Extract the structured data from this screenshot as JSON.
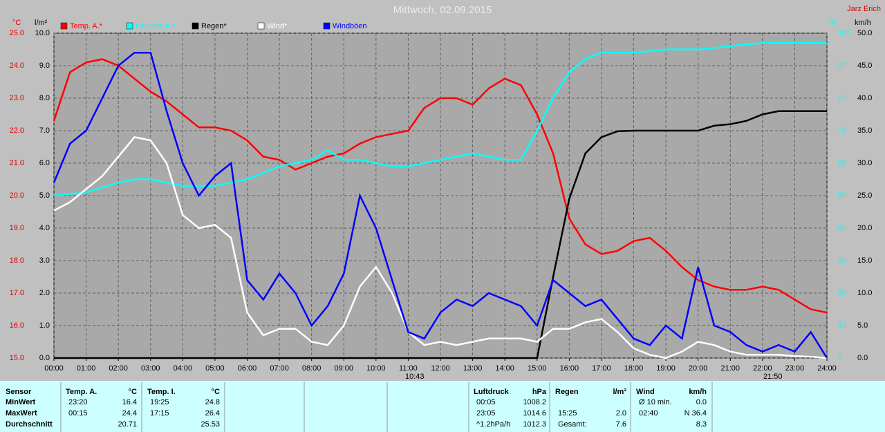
{
  "chart_data": {
    "type": "line",
    "title": "Mittwoch, 02.09.2015",
    "author": "Jarz Erich",
    "y_label": "°C",
    "y2_label": "l/m²",
    "y3_label": "%",
    "y4_label": "km/h",
    "markers": [
      "10:43",
      "21:50"
    ],
    "x": [
      0,
      0.5,
      1,
      1.5,
      2,
      2.5,
      3,
      3.5,
      4,
      4.5,
      5,
      5.5,
      6,
      6.5,
      7,
      7.5,
      8,
      8.5,
      9,
      9.5,
      10,
      10.5,
      11,
      11.5,
      12,
      12.5,
      13,
      13.5,
      14,
      14.5,
      15,
      15.5,
      16,
      16.5,
      17,
      17.5,
      18,
      18.5,
      19,
      19.5,
      20,
      20.5,
      21,
      21.5,
      22,
      22.5,
      23,
      23.5,
      24
    ],
    "xlim": [
      0,
      24
    ],
    "xticks": [
      {
        "value": 0,
        "label": "00:00"
      },
      {
        "value": 1,
        "label": "01:00"
      },
      {
        "value": 2,
        "label": "02:00"
      },
      {
        "value": 3,
        "label": "03:00"
      },
      {
        "value": 4,
        "label": "04:00"
      },
      {
        "value": 5,
        "label": "05:00"
      },
      {
        "value": 6,
        "label": "06:00"
      },
      {
        "value": 7,
        "label": "07:00"
      },
      {
        "value": 8,
        "label": "08:00"
      },
      {
        "value": 9,
        "label": "09:00"
      },
      {
        "value": 10,
        "label": "10:00"
      },
      {
        "value": 11,
        "label": "11:00"
      },
      {
        "value": 12,
        "label": "12:00"
      },
      {
        "value": 13,
        "label": "13:00"
      },
      {
        "value": 14,
        "label": "14:00"
      },
      {
        "value": 15,
        "label": "15:00"
      },
      {
        "value": 16,
        "label": "16:00"
      },
      {
        "value": 17,
        "label": "17:00"
      },
      {
        "value": 18,
        "label": "18:00"
      },
      {
        "value": 19,
        "label": "19:00"
      },
      {
        "value": 20,
        "label": "20:00"
      },
      {
        "value": 21,
        "label": "21:00"
      },
      {
        "value": 22,
        "label": "22:00"
      },
      {
        "value": 23,
        "label": "23:00"
      },
      {
        "value": 24,
        "label": "24:00"
      }
    ],
    "ylim": [
      15,
      25
    ],
    "yticks": [
      {
        "value": 15,
        "label": "15.0"
      },
      {
        "value": 16,
        "label": "16.0"
      },
      {
        "value": 17,
        "label": "17.0"
      },
      {
        "value": 18,
        "label": "18.0"
      },
      {
        "value": 19,
        "label": "19.0"
      },
      {
        "value": 20,
        "label": "20.0"
      },
      {
        "value": 21,
        "label": "21.0"
      },
      {
        "value": 22,
        "label": "22.0"
      },
      {
        "value": 23,
        "label": "23.0"
      },
      {
        "value": 24,
        "label": "24.0"
      },
      {
        "value": 25,
        "label": "25.0"
      }
    ],
    "y2lim": [
      0,
      10
    ],
    "y2ticks": [
      {
        "value": 0,
        "label": "0.0"
      },
      {
        "value": 1,
        "label": "1.0"
      },
      {
        "value": 2,
        "label": "2.0"
      },
      {
        "value": 3,
        "label": "3.0"
      },
      {
        "value": 4,
        "label": "4.0"
      },
      {
        "value": 5,
        "label": "5.0"
      },
      {
        "value": 6,
        "label": "6.0"
      },
      {
        "value": 7,
        "label": "7.0"
      },
      {
        "value": 8,
        "label": "8.0"
      },
      {
        "value": 9,
        "label": "9.0"
      },
      {
        "value": 10,
        "label": "10.0"
      }
    ],
    "y3lim": [
      0,
      100
    ],
    "y3ticks": [
      0,
      10,
      20,
      30,
      40,
      50,
      60,
      70,
      80,
      90,
      100
    ],
    "y4lim": [
      0,
      50
    ],
    "y4ticks": [
      {
        "value": 0,
        "label": "0.0"
      },
      {
        "value": 5,
        "label": "5.0"
      },
      {
        "value": 10,
        "label": "10.0"
      },
      {
        "value": 15,
        "label": "15.0"
      },
      {
        "value": 20,
        "label": "20.0"
      },
      {
        "value": 25,
        "label": "25.0"
      },
      {
        "value": 30,
        "label": "30.0"
      },
      {
        "value": 35,
        "label": "35.0"
      },
      {
        "value": 40,
        "label": "40.0"
      },
      {
        "value": 45,
        "label": "45.0"
      },
      {
        "value": 50,
        "label": "50.0"
      }
    ],
    "grid": true,
    "series": [
      {
        "name": "Temp. A.*",
        "color": "#ff0000",
        "axis": "y",
        "values": [
          22.3,
          23.8,
          24.1,
          24.2,
          24.0,
          23.6,
          23.2,
          22.9,
          22.5,
          22.1,
          22.1,
          22.0,
          21.7,
          21.2,
          21.1,
          20.8,
          21.0,
          21.2,
          21.3,
          21.6,
          21.8,
          21.9,
          22.0,
          22.7,
          23.0,
          23.0,
          22.8,
          23.3,
          23.6,
          23.4,
          22.5,
          21.3,
          19.3,
          18.5,
          18.2,
          18.3,
          18.6,
          18.7,
          18.3,
          17.8,
          17.4,
          17.2,
          17.1,
          17.1,
          17.2,
          17.1,
          16.8,
          16.5,
          16.4
        ]
      },
      {
        "name": "Feuchte A.*",
        "color": "#00ffff",
        "axis": "y3",
        "values": [
          50,
          50.5,
          51,
          52.5,
          54,
          55,
          55,
          54,
          53,
          53,
          53,
          54,
          55,
          57,
          59,
          60,
          61,
          64,
          61,
          61,
          60,
          59,
          59,
          60,
          61,
          62,
          63,
          62,
          61,
          61,
          70,
          80,
          88,
          92,
          94,
          94,
          94,
          94.5,
          95,
          95,
          95,
          95.5,
          96,
          96.5,
          97,
          97,
          97,
          97,
          97
        ]
      },
      {
        "name": "Regen*",
        "color": "#000000",
        "axis": "y2",
        "values": [
          0,
          0,
          0,
          0,
          0,
          0,
          0,
          0,
          0,
          0,
          0,
          0,
          0,
          0,
          0,
          0,
          0,
          0,
          0,
          0,
          0,
          0,
          0,
          0,
          0,
          0,
          0,
          0,
          0,
          0,
          0,
          2.5,
          4.9,
          6.3,
          6.8,
          6.98,
          7.0,
          7.0,
          7.0,
          7.0,
          7.0,
          7.15,
          7.2,
          7.3,
          7.5,
          7.6,
          7.6,
          7.6,
          7.6
        ]
      },
      {
        "name": "Wind*",
        "color": "#ffffff",
        "axis": "y4",
        "values": [
          22.7,
          24,
          26,
          28,
          31,
          34,
          33.5,
          30,
          22,
          20,
          20.5,
          18.5,
          7,
          3.5,
          4.5,
          4.5,
          2.5,
          2,
          5,
          11,
          14,
          10,
          4,
          2,
          2.5,
          2,
          2.5,
          3,
          3,
          3,
          2.5,
          4.5,
          4.5,
          5.5,
          6,
          4,
          1.5,
          0.5,
          0,
          1,
          2.5,
          2,
          1,
          0.5,
          0.5,
          0.5,
          0.3,
          0.2,
          0
        ]
      },
      {
        "name": "Windböen",
        "color": "#0000ff",
        "axis": "y4",
        "values": [
          27,
          33,
          35,
          40,
          45,
          47,
          47,
          38,
          30,
          25,
          28,
          30,
          12,
          9,
          13,
          10,
          5,
          8,
          13,
          25,
          20,
          12,
          4,
          3,
          7,
          9,
          8,
          10,
          9,
          8,
          5,
          12,
          10,
          8,
          9,
          6,
          3,
          2,
          5,
          3,
          14,
          5,
          4,
          2,
          1,
          2,
          1,
          4,
          0
        ]
      }
    ]
  },
  "stats": {
    "sensor": [
      "Sensor",
      "MinWert",
      "MaxWert",
      "Durchschnitt"
    ],
    "panels": [
      {
        "title": "Temp. A.",
        "unit": "°C",
        "rows": [
          {
            "time": "23:20",
            "value": "16.4"
          },
          {
            "time": "00:15",
            "value": "24.4"
          },
          {
            "value": "20.71"
          }
        ]
      },
      {
        "title": "Temp. I.",
        "unit": "°C",
        "rows": [
          {
            "time": "19:25",
            "value": "24.8"
          },
          {
            "time": "17:15",
            "value": "26.4"
          },
          {
            "value": "25.53"
          }
        ]
      },
      {
        "title": "Luftdruck",
        "unit": "hPa",
        "rows": [
          {
            "time": "00:05",
            "value": "1008.2"
          },
          {
            "time": "23:05",
            "value": "1014.6"
          },
          {
            "time": "^1.2hPa/h",
            "value": "1012.3"
          }
        ]
      },
      {
        "title": "Regen",
        "unit": "l/m²",
        "rows": [
          null,
          {
            "time": "15:25",
            "value": "2.0"
          },
          {
            "time": "Gesamt:",
            "value": "7.6"
          }
        ]
      },
      {
        "title": "Wind",
        "unit": "km/h",
        "rows": [
          {
            "time": "Ø 10 min.",
            "value": "0.0"
          },
          {
            "time": "02:40",
            "value": "N 36.4"
          },
          {
            "value": "8.3"
          }
        ]
      }
    ]
  }
}
